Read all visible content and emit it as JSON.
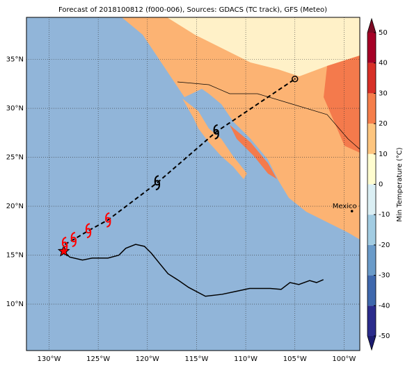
{
  "title": "Forecast of 2018100812 (f000-006), Sources: GDACS (TC track), GFS (Meteo)",
  "map": {
    "xlim": [
      -132.3,
      -98.4
    ],
    "ylim": [
      5.25,
      39.3
    ],
    "xticks": [
      {
        "value": -130,
        "label": "130°W"
      },
      {
        "value": -125,
        "label": "125°W"
      },
      {
        "value": -120,
        "label": "120°W"
      },
      {
        "value": -115,
        "label": "115°W"
      },
      {
        "value": -110,
        "label": "110°W"
      },
      {
        "value": -105,
        "label": "105°W"
      },
      {
        "value": -100,
        "label": "100°W"
      }
    ],
    "yticks": [
      {
        "value": 10,
        "label": "10°N"
      },
      {
        "value": 15,
        "label": "15°N"
      },
      {
        "value": 20,
        "label": "20°N"
      },
      {
        "value": 25,
        "label": "25°N"
      },
      {
        "value": 30,
        "label": "30°N"
      },
      {
        "value": 35,
        "label": "35°N"
      }
    ],
    "grid": true,
    "track": {
      "lon": [
        -128.5,
        -128.4,
        -127.5,
        -126.0,
        -124.0,
        -119.0,
        -113.0,
        -105.0
      ],
      "lat": [
        15.4,
        16.1,
        16.6,
        17.5,
        18.6,
        22.4,
        27.6,
        33.0
      ],
      "symbols": [
        "star",
        "cyclone",
        "cyclone",
        "cyclone",
        "cyclone",
        "cyclone",
        "cyclone",
        "circle"
      ],
      "colors": [
        "red",
        "red",
        "red",
        "red",
        "red",
        "black",
        "black",
        "black"
      ]
    },
    "line": {
      "lon": [
        -128.5,
        -127.9,
        -126.6,
        -125.6,
        -124.0,
        -122.9,
        -122.2,
        -121.2,
        -120.3,
        -119.6,
        -118.8,
        -117.9,
        -116.8,
        -115.8,
        -114.1,
        -112.4,
        -111.0,
        -109.6,
        -107.5,
        -106.4,
        -105.5,
        -104.6,
        -103.5,
        -102.8,
        -102.1
      ],
      "lat": [
        15.4,
        14.8,
        14.5,
        14.7,
        14.7,
        15.0,
        15.7,
        16.1,
        15.9,
        15.2,
        14.2,
        13.1,
        12.4,
        11.7,
        10.8,
        11.0,
        11.3,
        11.6,
        11.6,
        11.5,
        12.2,
        12.0,
        12.4,
        12.2,
        12.5
      ],
      "color": "black"
    },
    "city": {
      "label": "Mexico Cit",
      "lon": -99.2,
      "lat": 19.5
    }
  },
  "colorbar": {
    "label": "Min Temperature (°C)",
    "lim": [
      -50,
      50
    ],
    "ticks": [
      -50,
      -40,
      -30,
      -20,
      -10,
      0,
      10,
      20,
      30,
      40,
      50
    ],
    "colors": [
      "#2b2c8c",
      "#3f68ad",
      "#6a9bc9",
      "#a2cce2",
      "#dbeff4",
      "#fffdd0",
      "#fdc57f",
      "#f57e4b",
      "#d73027",
      "#a50026"
    ],
    "extend_colors": [
      "#1c1c70",
      "#7d0a24"
    ]
  }
}
